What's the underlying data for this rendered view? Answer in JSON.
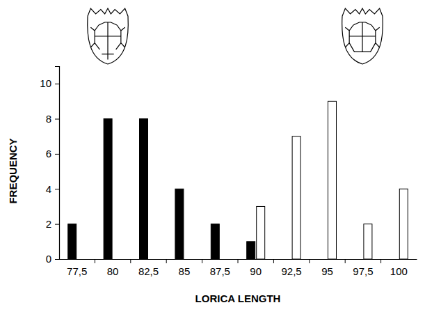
{
  "chart_data": {
    "type": "bar",
    "x_label": "LORICA LENGTH",
    "y_label": "FREQUENCY",
    "categories": [
      "77,5",
      "80",
      "82,5",
      "85",
      "87,5",
      "90",
      "92,5",
      "95",
      "97,5",
      "100"
    ],
    "series": [
      {
        "color": "#000000",
        "values": [
          2,
          8,
          8,
          4,
          2,
          1,
          null,
          null,
          null,
          null
        ]
      },
      {
        "color": "#ffffff",
        "values": [
          null,
          null,
          null,
          null,
          null,
          3,
          7,
          9,
          2,
          4
        ]
      }
    ],
    "ylim": [
      0,
      11
    ],
    "yticks": [
      0,
      2,
      4,
      6,
      8,
      10
    ],
    "grid": false
  }
}
